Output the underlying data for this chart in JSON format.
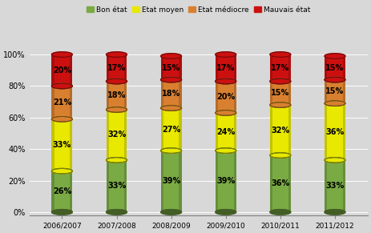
{
  "categories": [
    "2006/2007",
    "2007/2008",
    "2008/2009",
    "2009/2010",
    "2010/2011",
    "2011/2012"
  ],
  "bon_etat": [
    26,
    33,
    39,
    39,
    36,
    33
  ],
  "etat_moyen": [
    33,
    32,
    27,
    24,
    32,
    36
  ],
  "etat_mediocre": [
    21,
    18,
    18,
    20,
    15,
    15
  ],
  "mauvais_etat": [
    20,
    17,
    15,
    17,
    17,
    15
  ],
  "colors": {
    "bon_etat": "#7aaa44",
    "etat_moyen": "#e8e800",
    "etat_mediocre": "#d88030",
    "mauvais_etat": "#cc1010"
  },
  "legend_labels": [
    "Bon état",
    "Etat moyen",
    "Etat médiocre",
    "Mauvais état"
  ],
  "background_color": "#d8d8d8",
  "bar_width": 0.38,
  "ell_ratio": 0.28
}
